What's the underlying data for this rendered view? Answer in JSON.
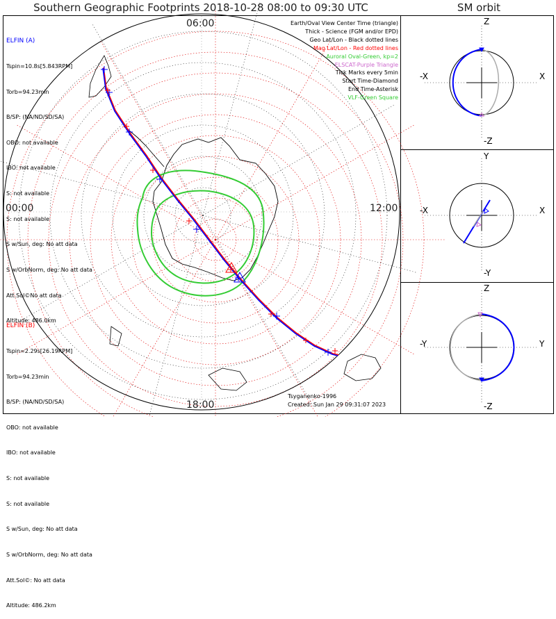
{
  "title": "Southern Geographic Footprints 2018-10-28 08:00 to 09:30 UTC",
  "sm_title": "SM orbit",
  "colors": {
    "elfin_a": "#0000ff",
    "elfin_b": "#ff0000",
    "aurora": "#33cc33",
    "mag_grid": "#e00000",
    "geo_grid": "#000000",
    "cross_grid": "#888888"
  },
  "time_labels": {
    "top": "06:00",
    "left": "00:00",
    "right": "12:00",
    "bottom": "18:00"
  },
  "elfin_a": {
    "name": "ELFIN (A)",
    "lines": [
      "Tspin=10.8s[5.843RPM]",
      "Torb=94.23min",
      "B/SP: (NA/ND/SD/SA)",
      "OBO: not available",
      "IBO: not available",
      "S: not available",
      "S: not available",
      "S w/Sun, deg: No att data",
      "S w/OrbNorm, deg: No att data",
      "Att.Sol©No att data",
      "Altitude: 486.0km"
    ]
  },
  "elfin_b": {
    "name": "ELFIN (B)",
    "lines": [
      "Tspin=2.29s[26.19RPM]",
      "Torb=94.23min",
      "B/SP: (NA/ND/SD/SA)",
      "OBO: not available",
      "IBO: not available",
      "S: not available",
      "S: not available",
      "S w/Sun, deg: No att data",
      "S w/OrbNorm, deg: No att data",
      "Att.Sol©: No att data",
      "Altitude: 486.2km"
    ]
  },
  "legend": [
    {
      "text": "Earth/Oval View Center Time (triangle)",
      "color": "#000000"
    },
    {
      "text": "Thick - Science (FGM and/or EPD)",
      "color": "#000000"
    },
    {
      "text": "Geo Lat/Lon - Black dotted lines",
      "color": "#000000"
    },
    {
      "text": "Mag Lat/Lon - Red dotted lines",
      "color": "#ff0000"
    },
    {
      "text": "Auroral Oval-Green, kp=2",
      "color": "#33cc33"
    },
    {
      "text": "ELSCAT-Purple Triangle",
      "color": "#cc66cc"
    },
    {
      "text": "Tick Marks every 5min",
      "color": "#000000"
    },
    {
      "text": "Start Time-Diamond",
      "color": "#000000"
    },
    {
      "text": "End Time-Asterisk",
      "color": "#000000"
    },
    {
      "text": "VLF-Green Square",
      "color": "#33cc33"
    }
  ],
  "credit": "Tsyganenko-1996",
  "created": "Created: Sun Jan 29 09:31:07 2023",
  "sm_panels": [
    {
      "top": "Z",
      "bottom": "-Z",
      "left": "-X",
      "right": "X"
    },
    {
      "top": "Y",
      "bottom": "-Y",
      "left": "-X",
      "right": "X"
    },
    {
      "top": "Z",
      "bottom": "-Z",
      "left": "-Y",
      "right": "Y"
    }
  ],
  "chart_data": {
    "type": "map",
    "projection": "south polar stereographic",
    "time_range": "2018-10-28 08:00 to 09:30 UTC",
    "series": [
      {
        "name": "ELFIN (A)",
        "color": "#0000ff",
        "tick_marks": 12
      },
      {
        "name": "ELFIN (B)",
        "color": "#ff0000",
        "tick_marks": 12
      }
    ],
    "auroral_oval_kp": 2,
    "mlt_labels": [
      "00:00",
      "06:00",
      "12:00",
      "18:00"
    ]
  }
}
